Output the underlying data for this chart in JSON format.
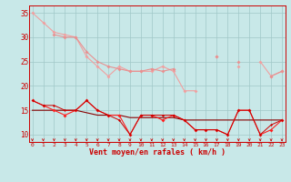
{
  "x": [
    0,
    1,
    2,
    3,
    4,
    5,
    6,
    7,
    8,
    9,
    10,
    11,
    12,
    13,
    14,
    15,
    16,
    17,
    18,
    19,
    20,
    21,
    22,
    23
  ],
  "rafale1": [
    35,
    33,
    31,
    30.5,
    30,
    26,
    24,
    22,
    24,
    23,
    23,
    23,
    24,
    23,
    19,
    19,
    null,
    26,
    null,
    24,
    null,
    25,
    22,
    23
  ],
  "rafale2": [
    null,
    null,
    30.5,
    30,
    30,
    27,
    25,
    24,
    23.5,
    23,
    23,
    23.5,
    23,
    23.5,
    null,
    null,
    null,
    26,
    null,
    25,
    null,
    null,
    22,
    23
  ],
  "rafale3": [
    null,
    null,
    null,
    null,
    null,
    null,
    null,
    null,
    null,
    null,
    null,
    null,
    null,
    null,
    null,
    null,
    null,
    null,
    null,
    null,
    null,
    null,
    null,
    null
  ],
  "mean1": [
    17,
    16,
    15,
    14,
    15,
    17,
    15,
    14,
    14,
    10,
    14,
    14,
    13,
    14,
    13,
    11,
    11,
    11,
    10,
    15,
    15,
    10,
    11,
    13
  ],
  "trend": [
    15,
    15,
    15,
    15,
    15,
    14.5,
    14,
    14,
    14,
    13.5,
    13.5,
    13.5,
    13.5,
    13.5,
    13,
    13,
    13,
    13,
    13,
    13,
    13,
    13,
    13,
    13
  ],
  "mean2": [
    17,
    16,
    16,
    15,
    15,
    17,
    15,
    14,
    13,
    10,
    14,
    14,
    14,
    14,
    13,
    11,
    11,
    11,
    10,
    15,
    15,
    10,
    12,
    13
  ],
  "bg_color": "#c8e8e8",
  "grid_color": "#a0c8c8",
  "xlabel": "Vent moyen/en rafales ( km/h )",
  "yticks": [
    10,
    15,
    20,
    25,
    30,
    35
  ],
  "xlim": [
    -0.3,
    23.3
  ],
  "ylim": [
    8.5,
    36.5
  ]
}
